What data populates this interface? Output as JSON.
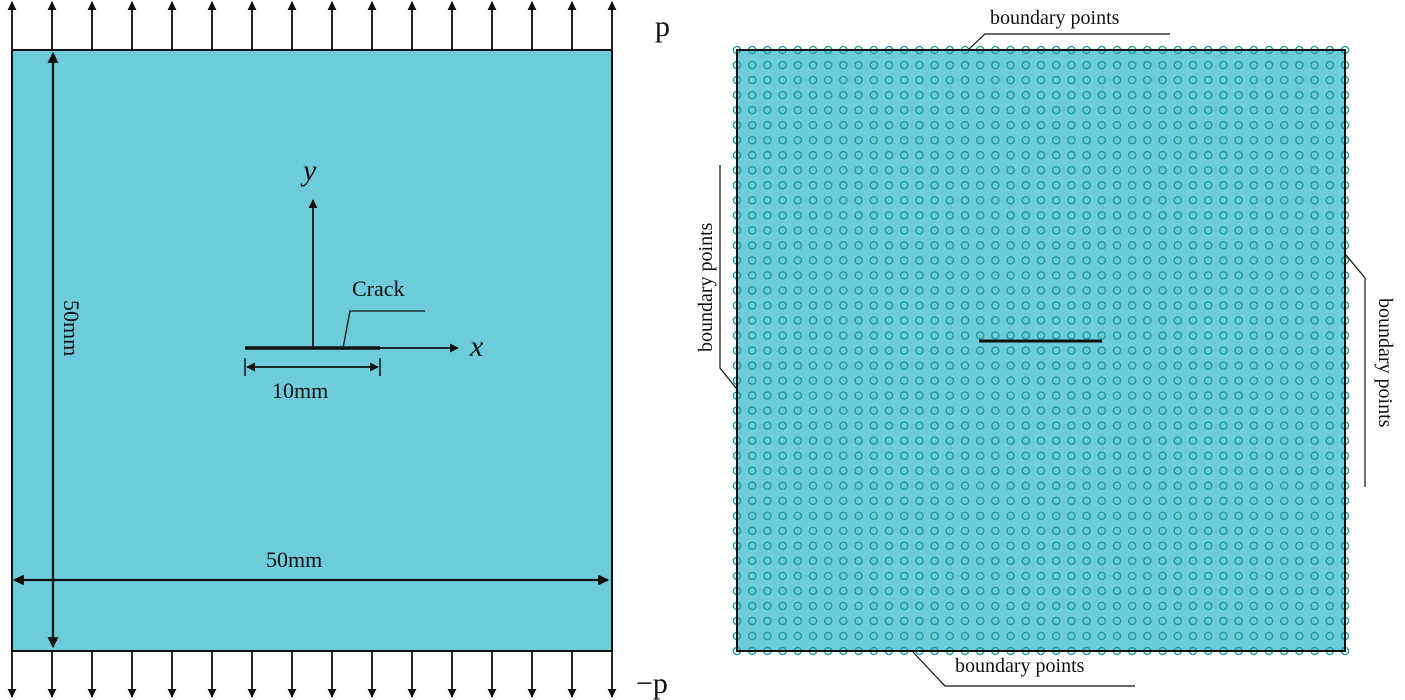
{
  "left_panel": {
    "load_top_label": "p",
    "load_bottom_label": "−p",
    "height_dimension": "50mm",
    "width_dimension": "50mm",
    "axis_x_label": "x",
    "axis_y_label": "y",
    "crack_label": "Crack",
    "crack_length": "10mm",
    "fill_color": "#6ecbdb"
  },
  "right_panel": {
    "boundary_top": "boundary points",
    "boundary_left": "boundary points",
    "boundary_right": "boundary points",
    "boundary_bottom": "boundary points",
    "fill_color": "#6ecbdb",
    "node_color": "#1f9e98"
  }
}
